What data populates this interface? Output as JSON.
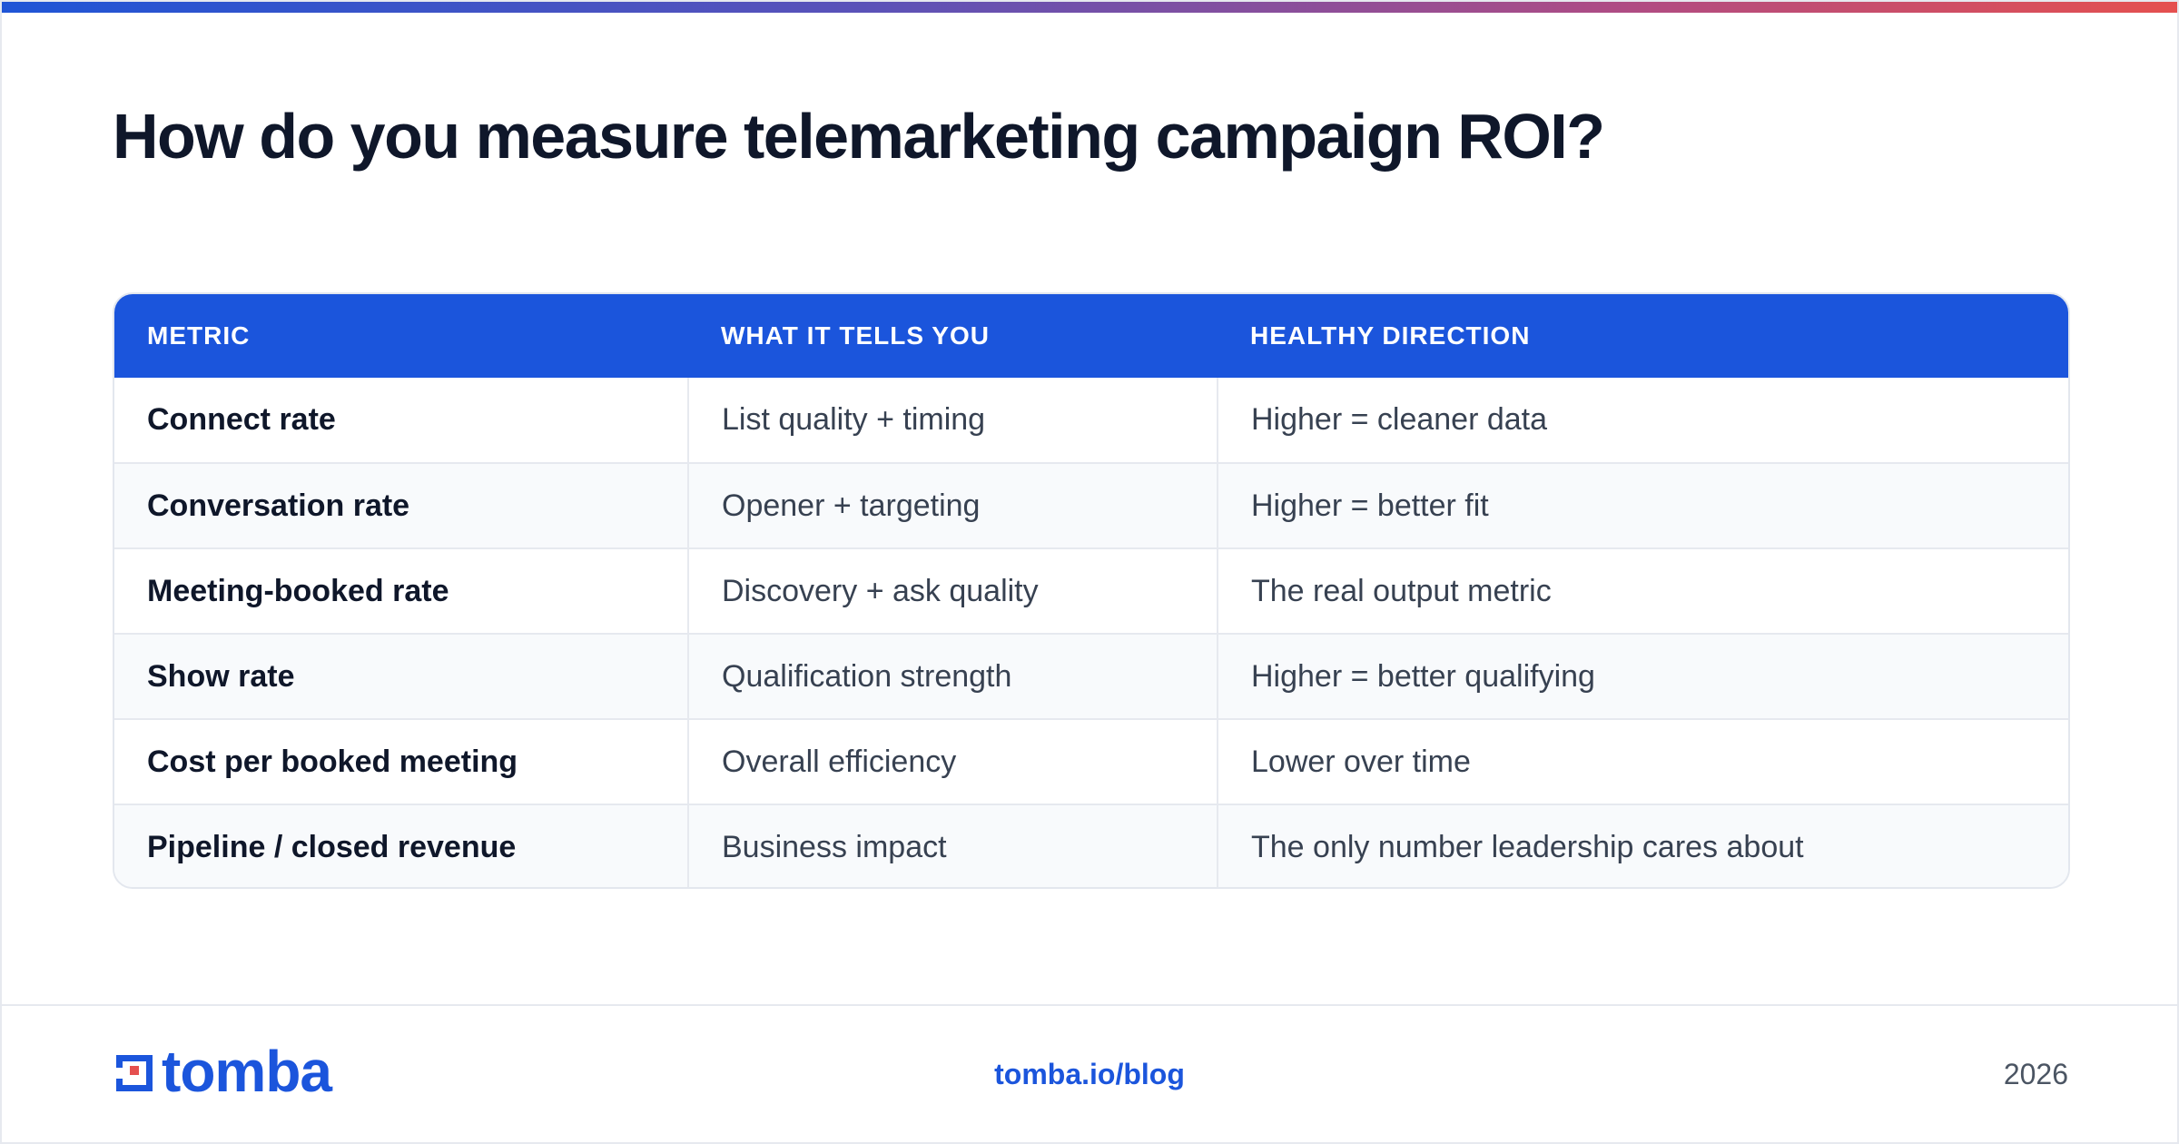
{
  "title": "How do you measure telemarketing campaign ROI?",
  "table": {
    "headers": [
      "METRIC",
      "WHAT IT TELLS YOU",
      "HEALTHY DIRECTION"
    ],
    "rows": [
      [
        "Connect rate",
        "List quality + timing",
        "Higher = cleaner data"
      ],
      [
        "Conversation rate",
        "Opener + targeting",
        "Higher = better fit"
      ],
      [
        "Meeting-booked rate",
        "Discovery + ask quality",
        "The real output metric"
      ],
      [
        "Show rate",
        "Qualification strength",
        "Higher = better qualifying"
      ],
      [
        "Cost per booked meeting",
        "Overall efficiency",
        "Lower over time"
      ],
      [
        "Pipeline / closed revenue",
        "Business impact",
        "The only number leadership cares about"
      ]
    ]
  },
  "footer": {
    "logo_text": "tomba",
    "link": "tomba.io/blog",
    "year": "2026"
  },
  "colors": {
    "brand_blue": "#1b55dc",
    "accent_red": "#e5504f"
  },
  "icons": {
    "logo": "tomba-logo-icon"
  }
}
